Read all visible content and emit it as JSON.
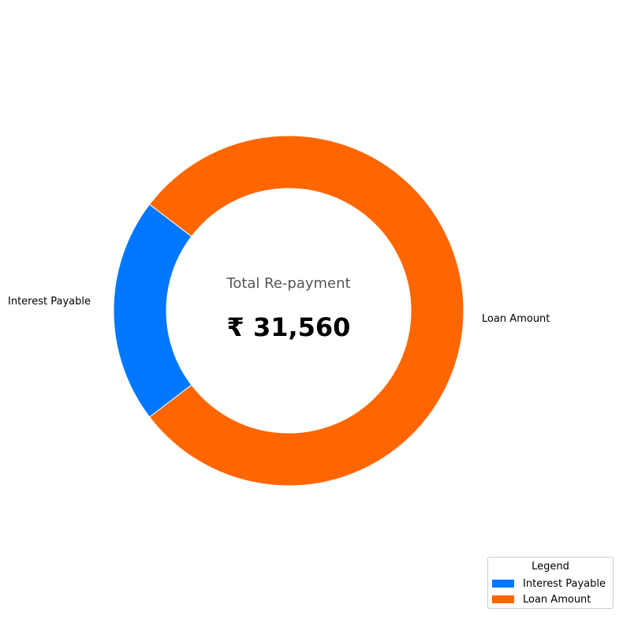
{
  "chart_data": {
    "type": "pie",
    "style": "donut",
    "title": "",
    "center_title": "Total Re-payment",
    "center_value": "₹ 31,560",
    "slices": [
      {
        "label": "Interest Payable",
        "value": 6560,
        "color": "#0077ff"
      },
      {
        "label": "Loan Amount",
        "value": 25000,
        "color": "#ff6600"
      }
    ],
    "legend": {
      "title": "Legend",
      "placement": "bottom-right",
      "entries": [
        "Interest Payable",
        "Loan Amount"
      ]
    }
  }
}
